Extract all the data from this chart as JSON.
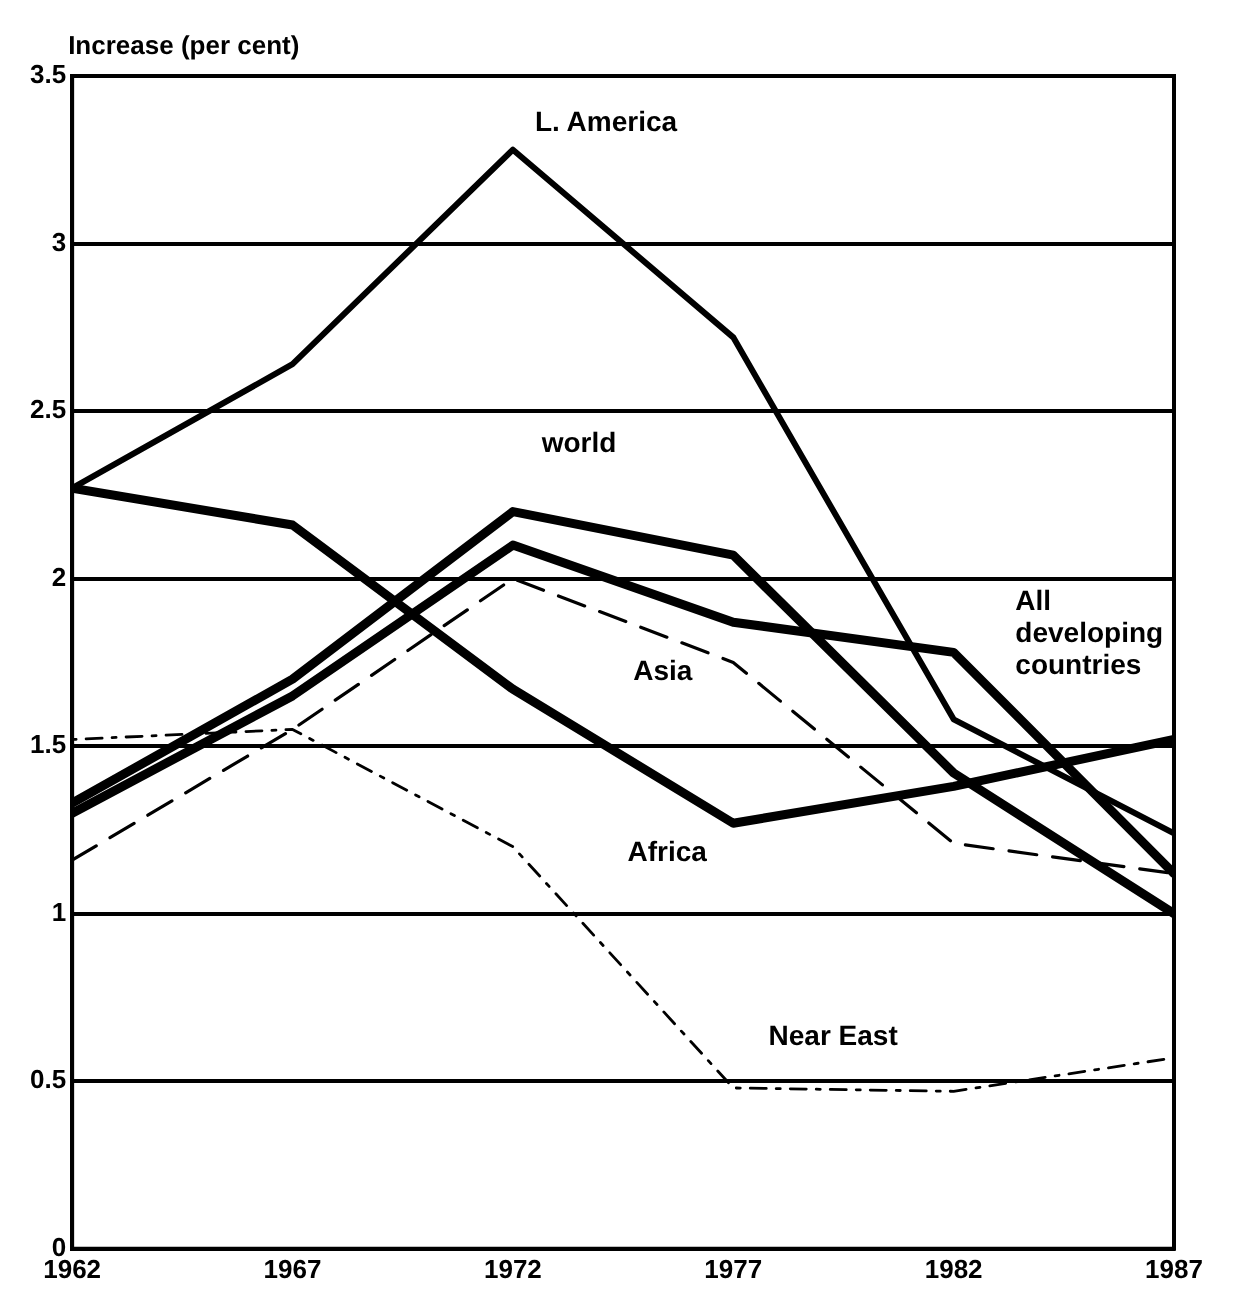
{
  "chart_data": {
    "type": "line",
    "ylabel": "Increase (per cent)",
    "x": [
      1962,
      1967,
      1972,
      1977,
      1982,
      1987
    ],
    "xlim": [
      1962,
      1987
    ],
    "xticks": [
      1962,
      1967,
      1972,
      1977,
      1982,
      1987
    ],
    "ylim": [
      0,
      3.5
    ],
    "yticks": [
      0,
      0.5,
      1,
      1.5,
      2,
      2.5,
      3,
      3.5
    ],
    "grid": "y",
    "legend": false,
    "marker": "none",
    "series": [
      {
        "name": "L. America",
        "color": "#000000",
        "line_style": "solid",
        "values": [
          2.27,
          2.64,
          3.28,
          2.72,
          1.58,
          1.24
        ]
      },
      {
        "name": "world",
        "color": "#000000",
        "line_style": "solid",
        "values": [
          1.33,
          1.7,
          2.2,
          2.07,
          1.42,
          1.0
        ]
      },
      {
        "name": "All developing countries",
        "color": "#000000",
        "line_style": "solid",
        "values": [
          1.3,
          1.65,
          2.1,
          1.87,
          1.78,
          1.12
        ]
      },
      {
        "name": "Asia",
        "color": "#000000",
        "line_style": "dashed",
        "values": [
          1.16,
          1.55,
          2.0,
          1.75,
          1.21,
          1.12
        ]
      },
      {
        "name": "Africa",
        "color": "#000000",
        "line_style": "solid",
        "values": [
          2.27,
          2.16,
          1.67,
          1.27,
          1.38,
          1.52
        ]
      },
      {
        "name": "Near East",
        "color": "#000000",
        "line_style": "dotted",
        "values": [
          1.52,
          1.55,
          1.2,
          0.48,
          0.47,
          0.57
        ]
      }
    ]
  }
}
